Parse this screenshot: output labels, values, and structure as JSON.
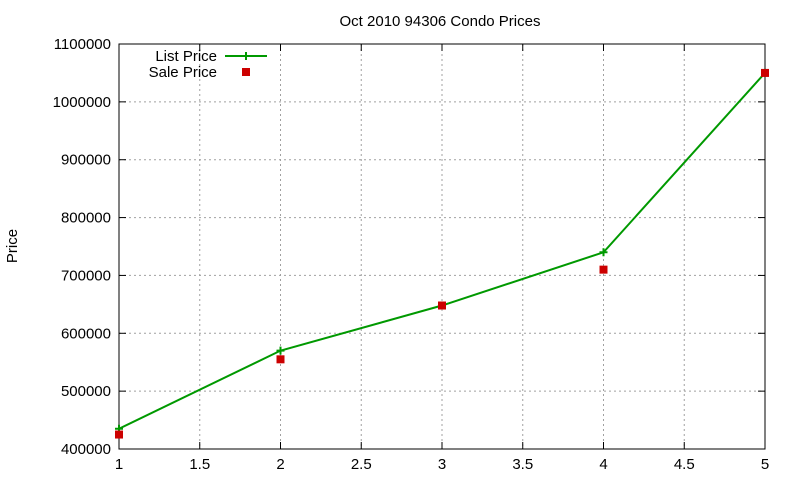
{
  "chart_data": {
    "type": "line",
    "title": "Oct 2010 94306 Condo Prices",
    "xlabel": "",
    "ylabel": "Price",
    "xlim": [
      1,
      5
    ],
    "ylim": [
      400000,
      1100000
    ],
    "xticks": [
      1,
      1.5,
      2,
      2.5,
      3,
      3.5,
      4,
      4.5,
      5
    ],
    "yticks": [
      400000,
      500000,
      600000,
      700000,
      800000,
      900000,
      1000000,
      1100000
    ],
    "xtick_labels": [
      "1",
      "1.5",
      "2",
      "2.5",
      "3",
      "3.5",
      "4",
      "4.5",
      "5"
    ],
    "ytick_labels": [
      "400000",
      "500000",
      "600000",
      "700000",
      "800000",
      "900000",
      "1000000",
      "1100000"
    ],
    "grid": true,
    "legend_position": "top-left",
    "series": [
      {
        "name": "List Price",
        "style": "line-plus",
        "color": "#009900",
        "x": [
          1,
          2,
          3,
          4,
          5
        ],
        "values": [
          435000,
          570000,
          648000,
          740000,
          1050000
        ]
      },
      {
        "name": "Sale Price",
        "style": "square",
        "color": "#cc0000",
        "x": [
          1,
          2,
          3,
          4,
          5
        ],
        "values": [
          425000,
          555000,
          648000,
          710000,
          1050000
        ]
      }
    ]
  }
}
